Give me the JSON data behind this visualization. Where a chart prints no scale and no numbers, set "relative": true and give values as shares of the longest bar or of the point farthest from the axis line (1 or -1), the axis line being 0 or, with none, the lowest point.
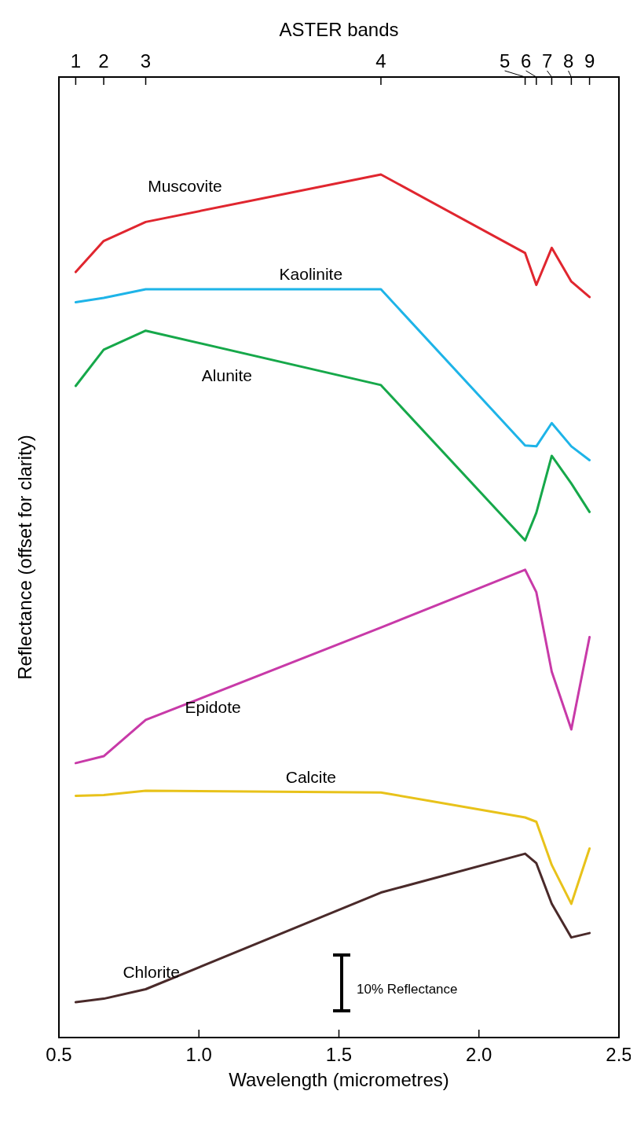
{
  "chart_data": {
    "type": "line",
    "relative": true,
    "xlabel": "Wavelength (micrometres)",
    "ylabel": "Reflectance (offset for clarity)",
    "x2label": "ASTER bands",
    "xlim": [
      0.5,
      2.5
    ],
    "xticks": [
      {
        "value": 0.5,
        "label": "0.5"
      },
      {
        "value": 1.0,
        "label": "1.0"
      },
      {
        "value": 1.5,
        "label": "1.5"
      },
      {
        "value": 2.0,
        "label": "2.0"
      },
      {
        "value": 2.5,
        "label": "2.5"
      }
    ],
    "x": [
      0.56,
      0.66,
      0.81,
      1.65,
      2.165,
      2.205,
      2.26,
      2.33,
      2.395
    ],
    "series": [
      {
        "name": "Muscovite",
        "color": "#e0262f",
        "values": [
          0.887,
          0.923,
          0.945,
          1,
          0.909,
          0.872,
          0.915,
          0.876,
          0.858
        ]
      },
      {
        "name": "Kaolinite",
        "color": "#1eb4e8",
        "values": [
          0.852,
          0.857,
          0.867,
          0.867,
          0.686,
          0.685,
          0.712,
          0.685,
          0.669
        ]
      },
      {
        "name": "Alunite",
        "color": "#16a84a",
        "values": [
          0.755,
          0.797,
          0.819,
          0.756,
          0.576,
          0.608,
          0.674,
          0.642,
          0.609
        ]
      },
      {
        "name": "Epidote",
        "color": "#c83aa8",
        "values": [
          0.318,
          0.326,
          0.368,
          0.475,
          0.542,
          0.516,
          0.424,
          0.357,
          0.464
        ]
      },
      {
        "name": "Calcite",
        "color": "#e8c21a",
        "values": [
          0.28,
          0.281,
          0.286,
          0.284,
          0.255,
          0.25,
          0.2,
          0.155,
          0.219
        ]
      },
      {
        "name": "Chlorite",
        "color": "#4a2a2a",
        "values": [
          0.041,
          0.045,
          0.056,
          0.168,
          0.213,
          0.202,
          0.155,
          0.116,
          0.121
        ]
      }
    ],
    "annotations": [
      "10% Reflectance",
      {
        "text": "1",
        "x": 0.56
      },
      {
        "text": "2",
        "x": 0.66
      },
      {
        "text": "3",
        "x": 0.81
      },
      {
        "text": "4",
        "x": 1.65
      },
      {
        "text": "5",
        "x": 2.165
      },
      {
        "text": "6",
        "x": 2.205
      },
      {
        "text": "7",
        "x": 2.26
      },
      {
        "text": "8",
        "x": 2.33
      },
      {
        "text": "9",
        "x": 2.395
      }
    ],
    "grid": false,
    "legend": false,
    "line_style": "solid",
    "marker": "none"
  }
}
